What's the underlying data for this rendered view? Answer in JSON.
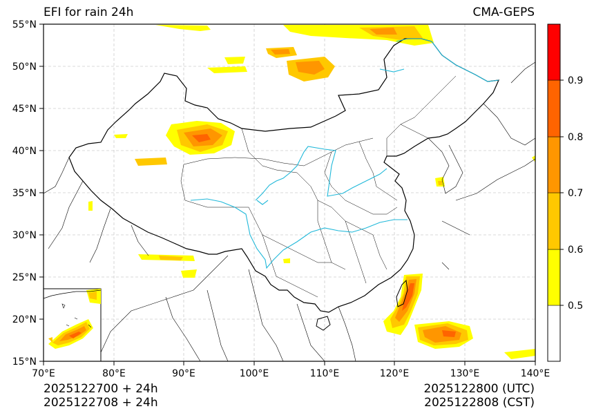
{
  "title_left": "EFI for rain 24h",
  "title_right": "CMA-GEPS",
  "init_time_utc": "2025122700 + 24h",
  "init_time_cst": "2025122708 + 24h",
  "valid_time_utc": "2025122800 (UTC)",
  "valid_time_cst": "2025122808 (CST)",
  "map": {
    "lon_range": [
      70,
      140
    ],
    "lat_range": [
      15,
      55
    ],
    "lon_ticks": [
      "70°E",
      "80°E",
      "90°E",
      "100°E",
      "110°E",
      "120°E",
      "130°E",
      "140°E"
    ],
    "lat_ticks": [
      "15°N",
      "20°N",
      "25°N",
      "30°N",
      "35°N",
      "40°N",
      "45°N",
      "50°N",
      "55°N"
    ],
    "grid": true,
    "river_color": "#1fb8d9",
    "border_color": "#000000"
  },
  "colorbar": {
    "levels": [
      "0.5",
      "0.6",
      "0.7",
      "0.8",
      "0.9"
    ],
    "colors": [
      "#ffffff",
      "#ffff00",
      "#ffc800",
      "#ff9600",
      "#ff6400",
      "#ff0000"
    ]
  }
}
